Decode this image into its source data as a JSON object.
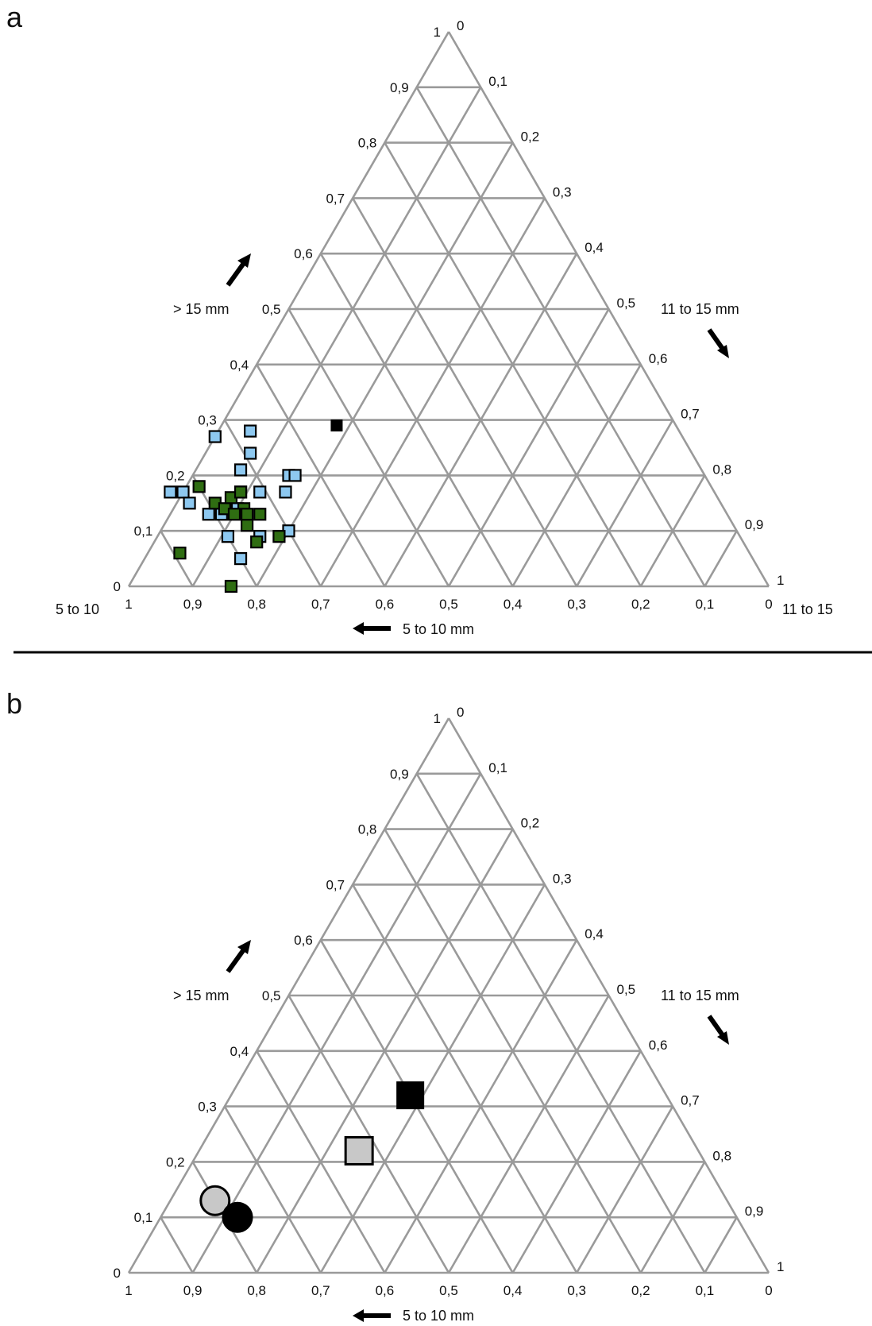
{
  "panels": [
    {
      "label": "a",
      "bottom_axis_label": "5  to 10 mm",
      "left_axis_label": "> 15 mm",
      "right_axis_label": "11 to 15 mm",
      "bottom_left_corner_label": "5  to 10",
      "bottom_right_corner_label": "11 to 15"
    },
    {
      "label": "b",
      "bottom_axis_label": "5  to 10 mm",
      "left_axis_label": "> 15 mm",
      "right_axis_label": "11 to 15 mm",
      "bottom_left_corner_label": "",
      "bottom_right_corner_label": ""
    }
  ],
  "colors": {
    "grid": "#9a9a9a",
    "blue_marker": "#8dc8f0",
    "green_marker": "#2f6d12",
    "black_marker": "#000000",
    "gray_marker": "#c8c8c8"
  },
  "chart_data": [
    {
      "type": "scatter",
      "ternary": true,
      "title": "",
      "components": [
        "5  to 10 mm",
        "11 to 15 mm",
        "> 15 mm"
      ],
      "bottom_ticks": [
        "1",
        "0,9",
        "0,8",
        "0,7",
        "0,6",
        "0,5",
        "0,4",
        "0,3",
        "0,2",
        "0,1",
        "0"
      ],
      "left_ticks": [
        "0",
        "0,1",
        "0,2",
        "0,3",
        "0,4",
        "0,5",
        "0,6",
        "0,7",
        "0,8",
        "0,9",
        "1"
      ],
      "right_ticks": [
        "0",
        "0,1",
        "0,2",
        "0,3",
        "0,4",
        "0,5",
        "0,6",
        "0,7",
        "0,8",
        "0,9",
        "1"
      ],
      "series": [
        {
          "marker": "square",
          "color": "#8dc8f0",
          "points": [
            {
              "small": 0.76,
              "large": 0.14
            },
            {
              "small": 0.67,
              "large": 0.28
            },
            {
              "small": 0.73,
              "large": 0.27
            },
            {
              "small": 0.69,
              "large": 0.24
            },
            {
              "small": 0.72,
              "large": 0.21
            },
            {
              "small": 0.85,
              "large": 0.17
            },
            {
              "small": 0.83,
              "large": 0.17
            },
            {
              "small": 0.83,
              "large": 0.15
            },
            {
              "small": 0.81,
              "large": 0.13
            },
            {
              "small": 0.79,
              "large": 0.13
            },
            {
              "small": 0.74,
              "large": 0.17
            },
            {
              "small": 0.71,
              "large": 0.17
            },
            {
              "small": 0.67,
              "large": 0.17
            },
            {
              "small": 0.65,
              "large": 0.2
            },
            {
              "small": 0.64,
              "large": 0.2
            },
            {
              "small": 0.7,
              "large": 0.1
            },
            {
              "small": 0.75,
              "large": 0.09
            },
            {
              "small": 0.8,
              "large": 0.09
            },
            {
              "small": 0.8,
              "large": 0.05
            }
          ]
        },
        {
          "marker": "square",
          "color": "#2f6d12",
          "points": [
            {
              "small": 0.89,
              "large": 0.06
            },
            {
              "small": 0.84,
              "large": 0.0
            },
            {
              "small": 0.8,
              "large": 0.18
            },
            {
              "small": 0.79,
              "large": 0.15
            },
            {
              "small": 0.78,
              "large": 0.14
            },
            {
              "small": 0.76,
              "large": 0.16
            },
            {
              "small": 0.75,
              "large": 0.14
            },
            {
              "small": 0.75,
              "large": 0.13
            },
            {
              "small": 0.77,
              "large": 0.13
            },
            {
              "small": 0.73,
              "large": 0.13
            },
            {
              "small": 0.76,
              "large": 0.11
            },
            {
              "small": 0.72,
              "large": 0.09
            },
            {
              "small": 0.76,
              "large": 0.08
            },
            {
              "small": 0.74,
              "large": 0.17
            }
          ]
        },
        {
          "marker": "square",
          "color": "#000000",
          "points": [
            {
              "small": 0.53,
              "large": 0.29
            }
          ]
        }
      ]
    },
    {
      "type": "scatter",
      "ternary": true,
      "title": "",
      "components": [
        "5  to 10 mm",
        "11 to 15 mm",
        "> 15 mm"
      ],
      "bottom_ticks": [
        "1",
        "0,9",
        "0,8",
        "0,7",
        "0,6",
        "0,5",
        "0,4",
        "0,3",
        "0,2",
        "0,1",
        "0"
      ],
      "left_ticks": [
        "0",
        "0,1",
        "0,2",
        "0,3",
        "0,4",
        "0,5",
        "0,6",
        "0,7",
        "0,8",
        "0,9",
        "1"
      ],
      "right_ticks": [
        "0",
        "0,1",
        "0,2",
        "0,3",
        "0,4",
        "0,5",
        "0,6",
        "0,7",
        "0,8",
        "0,9",
        "1"
      ],
      "series": [
        {
          "marker": "square",
          "size": "large",
          "color": "#000000",
          "points": [
            {
              "small": 0.4,
              "large": 0.32
            }
          ]
        },
        {
          "marker": "square",
          "size": "large",
          "color": "#c8c8c8",
          "points": [
            {
              "small": 0.53,
              "large": 0.22
            }
          ]
        },
        {
          "marker": "circle",
          "size": "large",
          "color": "#c8c8c8",
          "points": [
            {
              "small": 0.8,
              "large": 0.13
            }
          ]
        },
        {
          "marker": "circle",
          "size": "large",
          "color": "#000000",
          "points": [
            {
              "small": 0.78,
              "large": 0.1
            }
          ]
        }
      ]
    }
  ]
}
